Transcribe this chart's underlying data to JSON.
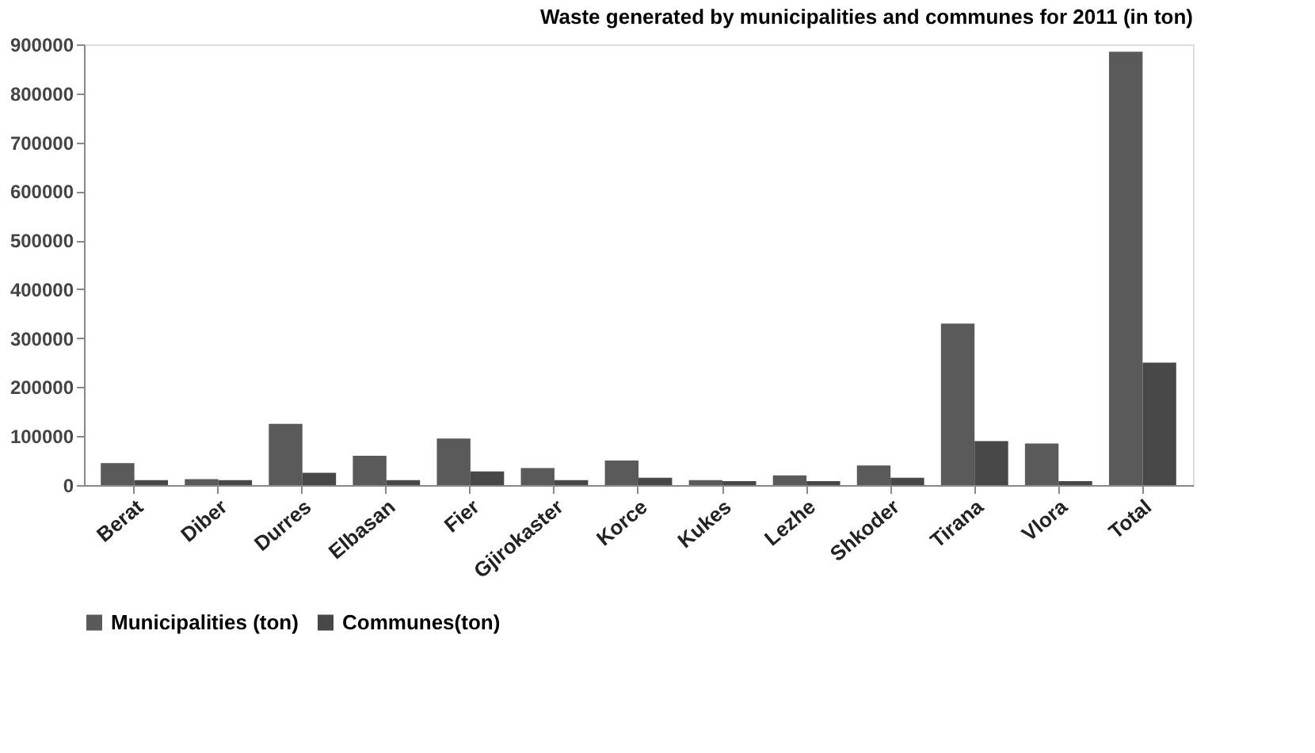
{
  "chart_data": {
    "type": "bar",
    "title": "Waste generated by municipalities and communes for 2011 (in ton)",
    "categories": [
      "Berat",
      "Diber",
      "Durres",
      "Elbasan",
      "Fier",
      "Gjirokaster",
      "Korce",
      "Kukes",
      "Lezhe",
      "Shkoder",
      "Tirana",
      "Vlora",
      "Total"
    ],
    "series": [
      {
        "name": "Municipalities (ton)",
        "color": "#5a5a5a",
        "values": [
          45000,
          12000,
          125000,
          60000,
          95000,
          35000,
          50000,
          10000,
          20000,
          40000,
          330000,
          85000,
          885000
        ]
      },
      {
        "name": "Communes(ton)",
        "color": "#474747",
        "values": [
          10000,
          10000,
          25000,
          10000,
          28000,
          10000,
          15000,
          8000,
          8000,
          15000,
          90000,
          8000,
          250000
        ]
      }
    ],
    "ylim": [
      0,
      900000
    ],
    "yticks": [
      0,
      100000,
      200000,
      300000,
      400000,
      500000,
      600000,
      700000,
      800000,
      900000
    ],
    "grid": false,
    "legend": "bottom"
  }
}
